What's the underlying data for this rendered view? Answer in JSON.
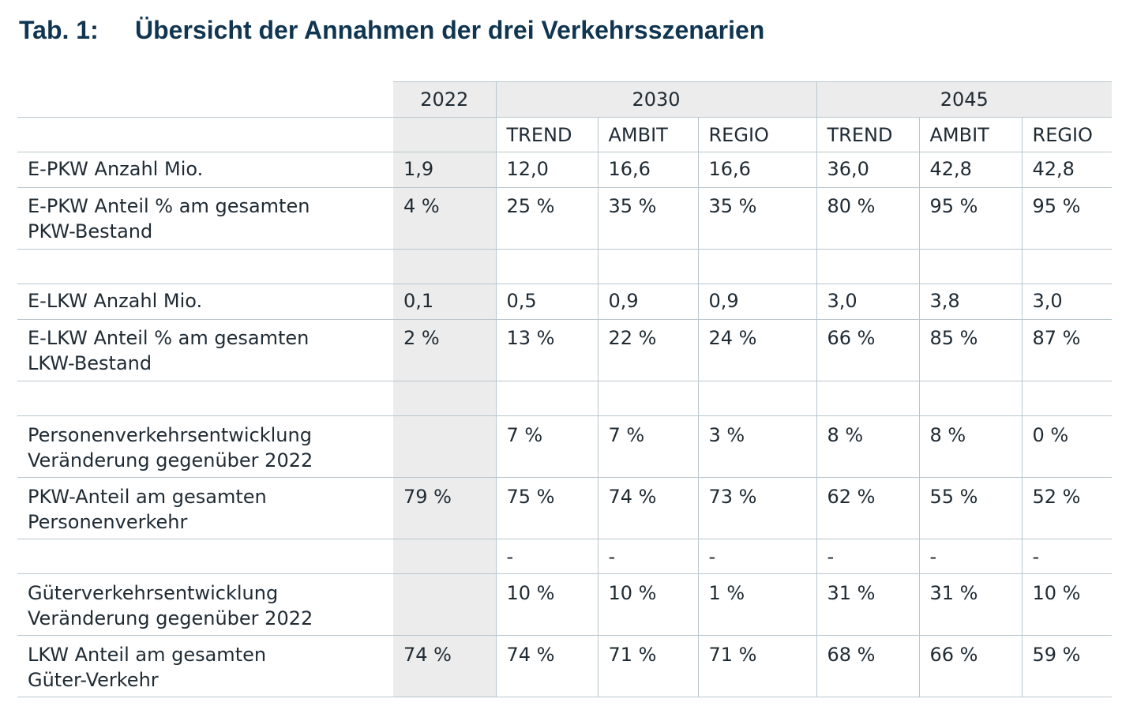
{
  "caption": {
    "number": "Tab. 1:",
    "title": "Übersicht der Annahmen der drei Verkehrsszenarien"
  },
  "years": {
    "y2022": "2022",
    "y2030": "2030",
    "y2045": "2045"
  },
  "scenarios": [
    "TREND",
    "AMBIT",
    "REGIO",
    "TREND",
    "AMBIT",
    "REGIO"
  ],
  "rows": [
    {
      "label": [
        "E-PKW Anzahl Mio."
      ],
      "v2022": "1,9",
      "values": [
        "12,0",
        "16,6",
        "16,6",
        "36,0",
        "42,8",
        "42,8"
      ]
    },
    {
      "label": [
        "E-PKW Anteil % am gesamten",
        "PKW-Bestand"
      ],
      "v2022": "4 %",
      "values": [
        "25 %",
        "35 %",
        "35 %",
        "80 %",
        "95 %",
        "95 %"
      ]
    },
    {
      "label": [
        "E-LKW Anzahl Mio."
      ],
      "v2022": "0,1",
      "values": [
        "0,5",
        "0,9",
        "0,9",
        "3,0",
        "3,8",
        "3,0"
      ]
    },
    {
      "label": [
        "E-LKW Anteil % am gesamten",
        "LKW-Bestand"
      ],
      "v2022": "2 %",
      "values": [
        "13 %",
        "22 %",
        "24 %",
        "66 %",
        "85 %",
        "87 %"
      ]
    },
    {
      "label": [
        "Personenverkehrsentwicklung",
        "Veränderung gegenüber 2022"
      ],
      "v2022": "",
      "values": [
        "7 %",
        "7 %",
        "3 %",
        "8 %",
        "8 %",
        "0 %"
      ]
    },
    {
      "label": [
        "PKW-Anteil am gesamten",
        "Personenverkehr"
      ],
      "v2022": "79 %",
      "values": [
        "75 %",
        "74 %",
        "73 %",
        "62 %",
        "55 %",
        "52 %"
      ]
    },
    {
      "label": [
        ""
      ],
      "v2022": "",
      "values": [
        "-",
        "-",
        "-",
        "-",
        "-",
        "-"
      ]
    },
    {
      "label": [
        "Güterverkehrsentwicklung",
        "Veränderung gegenüber 2022"
      ],
      "v2022": "",
      "values": [
        "10 %",
        "10 %",
        "1 %",
        "31 %",
        "31 %",
        "10 %"
      ]
    },
    {
      "label": [
        "LKW Anteil am gesamten",
        "Güter-Verkehr"
      ],
      "v2022": "74 %",
      "values": [
        "74 %",
        "71 %",
        "71 %",
        "68 %",
        "66 %",
        "59 %"
      ]
    }
  ]
}
